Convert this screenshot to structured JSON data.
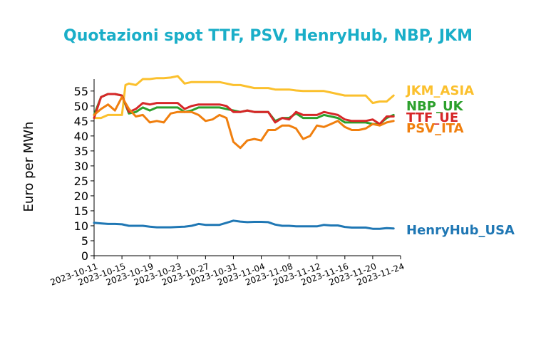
{
  "chart_data": {
    "type": "line",
    "title": "Quotazioni spot TTF, PSV, HenryHub, NBP, JKM",
    "xlabel": "",
    "ylabel": "Euro per MWh",
    "ylim": [
      0,
      59
    ],
    "yticks": [
      0,
      5,
      10,
      15,
      20,
      25,
      30,
      35,
      40,
      45,
      50,
      55
    ],
    "xlim": [
      "2023-10-11",
      "2023-11-24"
    ],
    "xticks": [
      "2023-10-11",
      "2023-10-15",
      "2023-10-19",
      "2023-10-23",
      "2023-10-27",
      "2023-10-31",
      "2023-11-04",
      "2023-11-08",
      "2023-11-12",
      "2023-11-16",
      "2023-11-20",
      "2023-11-24"
    ],
    "grid": false,
    "legend": "labels at line ends (right)",
    "series": [
      {
        "name": "JKM_ASIA",
        "color": "#fbc02d",
        "points": [
          [
            "2023-10-11",
            46
          ],
          [
            "2023-10-12",
            46
          ],
          [
            "2023-10-13",
            47
          ],
          [
            "2023-10-14",
            47
          ],
          [
            "2023-10-15",
            47
          ],
          [
            "2023-10-15.5",
            57
          ],
          [
            "2023-10-16",
            57.5
          ],
          [
            "2023-10-17",
            57
          ],
          [
            "2023-10-18",
            59
          ],
          [
            "2023-10-19",
            59
          ],
          [
            "2023-10-20",
            59.3
          ],
          [
            "2023-10-21",
            59.3
          ],
          [
            "2023-10-22",
            59.5
          ],
          [
            "2023-10-23",
            60
          ],
          [
            "2023-10-24",
            57.5
          ],
          [
            "2023-10-25",
            58
          ],
          [
            "2023-10-26",
            58
          ],
          [
            "2023-10-27",
            58
          ],
          [
            "2023-10-28",
            58
          ],
          [
            "2023-10-29",
            58
          ],
          [
            "2023-10-30",
            57.5
          ],
          [
            "2023-10-31",
            57
          ],
          [
            "2023-11-01",
            57
          ],
          [
            "2023-11-02",
            56.5
          ],
          [
            "2023-11-03",
            56
          ],
          [
            "2023-11-04",
            56
          ],
          [
            "2023-11-05",
            56
          ],
          [
            "2023-11-06",
            55.5
          ],
          [
            "2023-11-07",
            55.5
          ],
          [
            "2023-11-08",
            55.5
          ],
          [
            "2023-11-09",
            55.2
          ],
          [
            "2023-11-10",
            55
          ],
          [
            "2023-11-11",
            55
          ],
          [
            "2023-11-12",
            55
          ],
          [
            "2023-11-13",
            55
          ],
          [
            "2023-11-14",
            54.5
          ],
          [
            "2023-11-15",
            54
          ],
          [
            "2023-11-16",
            53.5
          ],
          [
            "2023-11-17",
            53.5
          ],
          [
            "2023-11-18",
            53.5
          ],
          [
            "2023-11-19",
            53.5
          ],
          [
            "2023-11-20",
            51
          ],
          [
            "2023-11-21",
            51.5
          ],
          [
            "2023-11-22",
            51.5
          ],
          [
            "2023-11-23",
            53.5
          ]
        ]
      },
      {
        "name": "NBP_UK",
        "color": "#2ca02c",
        "points": [
          [
            "2023-10-11",
            47
          ],
          [
            "2023-10-12",
            53
          ],
          [
            "2023-10-13",
            54
          ],
          [
            "2023-10-14",
            54
          ],
          [
            "2023-10-15",
            53.5
          ],
          [
            "2023-10-16",
            47.5
          ],
          [
            "2023-10-17",
            48
          ],
          [
            "2023-10-18",
            49.5
          ],
          [
            "2023-10-19",
            48.5
          ],
          [
            "2023-10-20",
            49.5
          ],
          [
            "2023-10-21",
            49.5
          ],
          [
            "2023-10-22",
            49.5
          ],
          [
            "2023-10-23",
            49.5
          ],
          [
            "2023-10-24",
            48
          ],
          [
            "2023-10-25",
            48.5
          ],
          [
            "2023-10-26",
            49.5
          ],
          [
            "2023-10-27",
            49.5
          ],
          [
            "2023-10-28",
            49.5
          ],
          [
            "2023-10-29",
            49.5
          ],
          [
            "2023-10-30",
            49
          ],
          [
            "2023-10-31",
            48.5
          ],
          [
            "2023-11-01",
            48
          ],
          [
            "2023-11-02",
            48.5
          ],
          [
            "2023-11-03",
            48
          ],
          [
            "2023-11-04",
            48
          ],
          [
            "2023-11-05",
            48
          ],
          [
            "2023-11-06",
            45
          ],
          [
            "2023-11-07",
            46
          ],
          [
            "2023-11-08",
            46
          ],
          [
            "2023-11-09",
            47.5
          ],
          [
            "2023-11-10",
            46
          ],
          [
            "2023-11-11",
            46
          ],
          [
            "2023-11-12",
            46
          ],
          [
            "2023-11-13",
            47
          ],
          [
            "2023-11-14",
            46.5
          ],
          [
            "2023-11-15",
            46
          ],
          [
            "2023-11-16",
            44.5
          ],
          [
            "2023-11-17",
            44.5
          ],
          [
            "2023-11-18",
            44.5
          ],
          [
            "2023-11-19",
            44.5
          ],
          [
            "2023-11-20",
            44
          ],
          [
            "2023-11-21",
            44
          ],
          [
            "2023-11-22",
            46
          ],
          [
            "2023-11-23",
            47
          ]
        ]
      },
      {
        "name": "TTF_UE",
        "color": "#d62728",
        "points": [
          [
            "2023-10-11",
            46
          ],
          [
            "2023-10-12",
            53
          ],
          [
            "2023-10-13",
            54
          ],
          [
            "2023-10-14",
            54
          ],
          [
            "2023-10-15",
            53.5
          ],
          [
            "2023-10-16",
            48
          ],
          [
            "2023-10-17",
            49
          ],
          [
            "2023-10-18",
            51
          ],
          [
            "2023-10-19",
            50.5
          ],
          [
            "2023-10-20",
            51
          ],
          [
            "2023-10-21",
            51
          ],
          [
            "2023-10-22",
            51
          ],
          [
            "2023-10-23",
            51
          ],
          [
            "2023-10-24",
            49
          ],
          [
            "2023-10-25",
            50
          ],
          [
            "2023-10-26",
            50.5
          ],
          [
            "2023-10-27",
            50.5
          ],
          [
            "2023-10-28",
            50.5
          ],
          [
            "2023-10-29",
            50.5
          ],
          [
            "2023-10-30",
            50
          ],
          [
            "2023-10-31",
            48
          ],
          [
            "2023-11-01",
            48
          ],
          [
            "2023-11-02",
            48.5
          ],
          [
            "2023-11-03",
            48
          ],
          [
            "2023-11-04",
            48
          ],
          [
            "2023-11-05",
            48
          ],
          [
            "2023-11-06",
            44.5
          ],
          [
            "2023-11-07",
            46
          ],
          [
            "2023-11-08",
            45.5
          ],
          [
            "2023-11-09",
            48
          ],
          [
            "2023-11-10",
            47
          ],
          [
            "2023-11-11",
            47
          ],
          [
            "2023-11-12",
            47
          ],
          [
            "2023-11-13",
            48
          ],
          [
            "2023-11-14",
            47.5
          ],
          [
            "2023-11-15",
            47
          ],
          [
            "2023-11-16",
            45.5
          ],
          [
            "2023-11-17",
            45
          ],
          [
            "2023-11-18",
            45
          ],
          [
            "2023-11-19",
            45
          ],
          [
            "2023-11-20",
            45.5
          ],
          [
            "2023-11-21",
            44
          ],
          [
            "2023-11-22",
            46.5
          ],
          [
            "2023-11-23",
            46.5
          ]
        ]
      },
      {
        "name": "PSV_ITA",
        "color": "#f07f0e",
        "points": [
          [
            "2023-10-11",
            47
          ],
          [
            "2023-10-12",
            49
          ],
          [
            "2023-10-13",
            50.5
          ],
          [
            "2023-10-14",
            48.5
          ],
          [
            "2023-10-15",
            53
          ],
          [
            "2023-10-16",
            49
          ],
          [
            "2023-10-17",
            46.5
          ],
          [
            "2023-10-18",
            47
          ],
          [
            "2023-10-19",
            44.5
          ],
          [
            "2023-10-20",
            45
          ],
          [
            "2023-10-21",
            44.5
          ],
          [
            "2023-10-22",
            47.5
          ],
          [
            "2023-10-23",
            48
          ],
          [
            "2023-10-24",
            48
          ],
          [
            "2023-10-25",
            48
          ],
          [
            "2023-10-26",
            47
          ],
          [
            "2023-10-27",
            45
          ],
          [
            "2023-10-28",
            45.5
          ],
          [
            "2023-10-29",
            47
          ],
          [
            "2023-10-30",
            46
          ],
          [
            "2023-10-31",
            38
          ],
          [
            "2023-11-01",
            36
          ],
          [
            "2023-11-02",
            38.5
          ],
          [
            "2023-11-03",
            39
          ],
          [
            "2023-11-04",
            38.5
          ],
          [
            "2023-11-05",
            42
          ],
          [
            "2023-11-06",
            42
          ],
          [
            "2023-11-07",
            43.5
          ],
          [
            "2023-11-08",
            43.5
          ],
          [
            "2023-11-09",
            42.5
          ],
          [
            "2023-11-10",
            39
          ],
          [
            "2023-11-11",
            40
          ],
          [
            "2023-11-12",
            43.5
          ],
          [
            "2023-11-13",
            43
          ],
          [
            "2023-11-14",
            44
          ],
          [
            "2023-11-15",
            45
          ],
          [
            "2023-11-16",
            43
          ],
          [
            "2023-11-17",
            42
          ],
          [
            "2023-11-18",
            42
          ],
          [
            "2023-11-19",
            42.5
          ],
          [
            "2023-11-20",
            44
          ],
          [
            "2023-11-21",
            43.5
          ],
          [
            "2023-11-22",
            44.5
          ],
          [
            "2023-11-23",
            45
          ]
        ]
      },
      {
        "name": "HenryHub_USA",
        "color": "#1f77b4",
        "points": [
          [
            "2023-10-11",
            11
          ],
          [
            "2023-10-12",
            10.8
          ],
          [
            "2023-10-13",
            10.6
          ],
          [
            "2023-10-14",
            10.6
          ],
          [
            "2023-10-15",
            10.5
          ],
          [
            "2023-10-16",
            10
          ],
          [
            "2023-10-17",
            10
          ],
          [
            "2023-10-18",
            10
          ],
          [
            "2023-10-19",
            9.7
          ],
          [
            "2023-10-20",
            9.5
          ],
          [
            "2023-10-21",
            9.5
          ],
          [
            "2023-10-22",
            9.5
          ],
          [
            "2023-10-23",
            9.6
          ],
          [
            "2023-10-24",
            9.7
          ],
          [
            "2023-10-25",
            10
          ],
          [
            "2023-10-26",
            10.6
          ],
          [
            "2023-10-27",
            10.3
          ],
          [
            "2023-10-28",
            10.3
          ],
          [
            "2023-10-29",
            10.3
          ],
          [
            "2023-10-30",
            11
          ],
          [
            "2023-10-31",
            11.7
          ],
          [
            "2023-11-01",
            11.4
          ],
          [
            "2023-11-02",
            11.2
          ],
          [
            "2023-11-03",
            11.3
          ],
          [
            "2023-11-04",
            11.3
          ],
          [
            "2023-11-05",
            11.2
          ],
          [
            "2023-11-06",
            10.4
          ],
          [
            "2023-11-07",
            10
          ],
          [
            "2023-11-08",
            10
          ],
          [
            "2023-11-09",
            9.8
          ],
          [
            "2023-11-10",
            9.8
          ],
          [
            "2023-11-11",
            9.8
          ],
          [
            "2023-11-12",
            9.8
          ],
          [
            "2023-11-13",
            10.3
          ],
          [
            "2023-11-14",
            10.1
          ],
          [
            "2023-11-15",
            10.1
          ],
          [
            "2023-11-16",
            9.6
          ],
          [
            "2023-11-17",
            9.4
          ],
          [
            "2023-11-18",
            9.4
          ],
          [
            "2023-11-19",
            9.4
          ],
          [
            "2023-11-20",
            9
          ],
          [
            "2023-11-21",
            9
          ],
          [
            "2023-11-22",
            9.2
          ],
          [
            "2023-11-23",
            9.1
          ]
        ]
      }
    ]
  }
}
